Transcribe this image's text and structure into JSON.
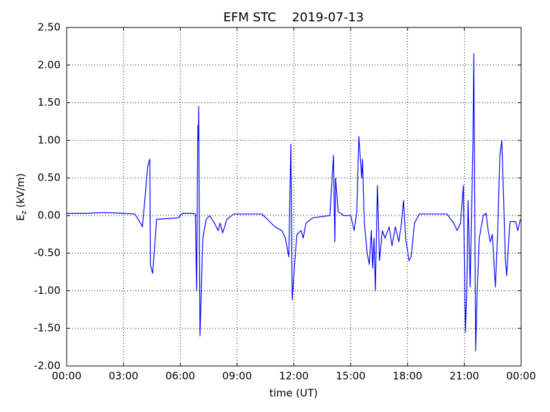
{
  "chart_data": {
    "type": "line",
    "title": "EFM STC    2019-07-13",
    "xlabel": "time (UT)",
    "ylabel": {
      "text": "E",
      "subscript": "z",
      "unit": "(kV/m)"
    },
    "xlim": [
      0,
      24
    ],
    "xticks": [
      {
        "value": 0,
        "label": "00:00"
      },
      {
        "value": 3,
        "label": "03:00"
      },
      {
        "value": 6,
        "label": "06:00"
      },
      {
        "value": 9,
        "label": "09:00"
      },
      {
        "value": 12,
        "label": "12:00"
      },
      {
        "value": 15,
        "label": "15:00"
      },
      {
        "value": 18,
        "label": "18:00"
      },
      {
        "value": 21,
        "label": "21:00"
      },
      {
        "value": 24,
        "label": "00:00"
      }
    ],
    "ylim": [
      -2,
      2.5
    ],
    "yticks": [
      {
        "value": -2,
        "label": "-2.00"
      },
      {
        "value": -1.5,
        "label": "-1.50"
      },
      {
        "value": -1,
        "label": "-1.00"
      },
      {
        "value": -0.5,
        "label": "-0.50"
      },
      {
        "value": 0,
        "label": "0.00"
      },
      {
        "value": 0.5,
        "label": "0.50"
      },
      {
        "value": 1,
        "label": "1.00"
      },
      {
        "value": 1.5,
        "label": "1.50"
      },
      {
        "value": 2,
        "label": "2.00"
      },
      {
        "value": 2.5,
        "label": "2.50"
      }
    ],
    "grid": true,
    "x": [
      0,
      1,
      2,
      3,
      3.6,
      3.9,
      4.0,
      4.28,
      4.33,
      4.39,
      4.42,
      4.47,
      4.54,
      4.75,
      5.9,
      6.1,
      6.6,
      6.8,
      6.86,
      6.93,
      6.95,
      6.97,
      7.04,
      7.19,
      7.37,
      7.55,
      7.8,
      8.0,
      8.1,
      8.24,
      8.46,
      8.82,
      10.3,
      10.6,
      11.0,
      11.36,
      11.55,
      11.73,
      11.84,
      11.91,
      12.02,
      12.16,
      12.38,
      12.49,
      12.64,
      13.0,
      13.9,
      14.09,
      14.16,
      14.2,
      14.34,
      14.63,
      15.0,
      15.18,
      15.32,
      15.43,
      15.58,
      15.62,
      15.72,
      15.87,
      15.98,
      16.09,
      16.16,
      16.23,
      16.3,
      16.41,
      16.52,
      16.67,
      16.81,
      17.03,
      17.18,
      17.36,
      17.54,
      17.68,
      17.79,
      17.9,
      18.08,
      18.19,
      18.37,
      18.63,
      20.08,
      20.44,
      20.62,
      20.8,
      20.95,
      21.06,
      21.13,
      21.2,
      21.31,
      21.38,
      21.46,
      21.5,
      21.6,
      21.68,
      21.79,
      22.0,
      22.15,
      22.26,
      22.37,
      22.48,
      22.64,
      22.75,
      22.88,
      22.98,
      23.09,
      23.17,
      23.24,
      23.35,
      23.42,
      23.71,
      23.82,
      23.96
    ],
    "series": [
      {
        "color": "#0000ff",
        "values": [
          0.03,
          0.03,
          0.04,
          0.03,
          0.02,
          -0.1,
          -0.15,
          0.65,
          0.7,
          0.75,
          -0.65,
          -0.7,
          -0.77,
          -0.05,
          -0.03,
          0.03,
          0.03,
          0.02,
          -1.0,
          1.2,
          1.0,
          1.45,
          -1.6,
          -0.3,
          -0.05,
          0.0,
          -0.1,
          -0.2,
          -0.1,
          -0.23,
          -0.05,
          0.02,
          0.02,
          -0.05,
          -0.15,
          -0.2,
          -0.3,
          -0.55,
          0.95,
          -1.12,
          -0.7,
          -0.25,
          -0.2,
          -0.3,
          -0.1,
          -0.03,
          0.0,
          0.8,
          -0.35,
          0.5,
          0.05,
          0.0,
          0.0,
          -0.2,
          0.05,
          1.05,
          0.5,
          0.75,
          -0.1,
          -0.5,
          -0.65,
          -0.2,
          -0.7,
          -0.3,
          -1.0,
          0.4,
          -0.6,
          -0.2,
          -0.3,
          -0.15,
          -0.4,
          -0.15,
          -0.35,
          -0.1,
          0.2,
          -0.3,
          -0.6,
          -0.55,
          -0.1,
          0.02,
          0.02,
          -0.1,
          -0.2,
          -0.1,
          0.4,
          -1.55,
          -1.0,
          0.2,
          -0.95,
          0.0,
          1.0,
          2.15,
          -1.8,
          -1.0,
          -0.3,
          0.0,
          0.03,
          -0.2,
          -0.35,
          -0.25,
          -0.95,
          -0.3,
          0.8,
          1.0,
          0.1,
          -0.6,
          -0.8,
          -0.3,
          -0.08,
          -0.08,
          -0.2,
          -0.05
        ]
      }
    ]
  }
}
